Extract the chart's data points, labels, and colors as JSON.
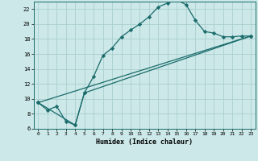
{
  "title": "",
  "xlabel": "Humidex (Indice chaleur)",
  "bg_color": "#cce8e8",
  "grid_color": "#aacece",
  "line_color": "#1a6b6b",
  "xlim": [
    -0.5,
    23.5
  ],
  "ylim": [
    6,
    23
  ],
  "xticks": [
    0,
    1,
    2,
    3,
    4,
    5,
    6,
    7,
    8,
    9,
    10,
    11,
    12,
    13,
    14,
    15,
    16,
    17,
    18,
    19,
    20,
    21,
    22,
    23
  ],
  "yticks": [
    6,
    8,
    10,
    12,
    14,
    16,
    18,
    20,
    22
  ],
  "line1_x": [
    0,
    1,
    2,
    3,
    4,
    5,
    6,
    7,
    8,
    9,
    10,
    11,
    12,
    13,
    14,
    15,
    16,
    17,
    18,
    19,
    20,
    21,
    22,
    23
  ],
  "line1_y": [
    9.5,
    8.5,
    9.0,
    7.0,
    6.5,
    10.8,
    13.0,
    15.8,
    16.8,
    18.3,
    19.2,
    20.0,
    21.0,
    22.3,
    22.8,
    23.2,
    22.6,
    20.5,
    19.0,
    18.8,
    18.3,
    18.3,
    18.4,
    18.4
  ],
  "line2_x": [
    0,
    23
  ],
  "line2_y": [
    9.5,
    18.4
  ],
  "line3_x": [
    0,
    4,
    5,
    23
  ],
  "line3_y": [
    9.5,
    6.5,
    10.8,
    18.4
  ]
}
